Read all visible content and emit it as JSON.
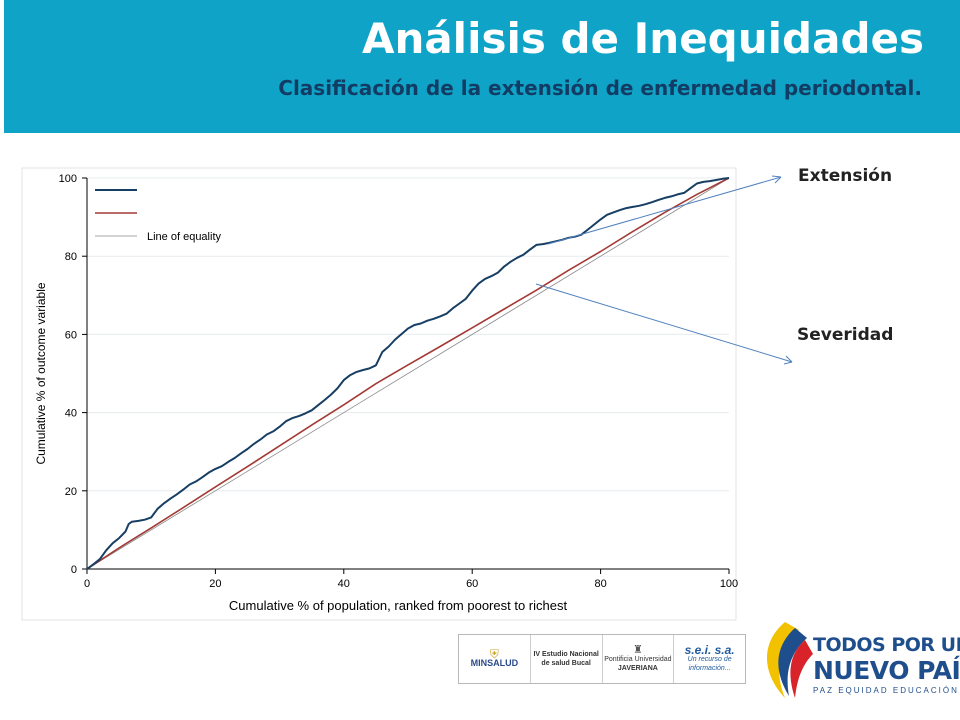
{
  "header": {
    "title": "Análisis de Inequidades",
    "subtitle": "Clasificación de la extensión de enfermedad periodontal."
  },
  "callouts": {
    "extension": "Extensión",
    "severity": "Severidad"
  },
  "colors": {
    "header_bg": "#0fa3c7",
    "series_extension": "#173e63",
    "series_severity": "#a33a35",
    "equality_line": "#8a8a8a"
  },
  "chart_data": {
    "type": "line",
    "xlabel": "Cumulative % of population, ranked from poorest to richest",
    "ylabel": "Cumulative % of outcome variable",
    "xlim": [
      0,
      100
    ],
    "ylim": [
      0,
      100
    ],
    "xticks": [
      0,
      20,
      40,
      60,
      80,
      100
    ],
    "yticks": [
      0,
      20,
      40,
      60,
      80,
      100
    ],
    "grid": true,
    "legend_position": "top-left",
    "legend_entries": [
      "",
      "",
      "Line of equality"
    ],
    "series": [
      {
        "x": [
          0,
          1,
          2,
          3,
          4,
          5,
          6,
          6.5,
          7,
          8,
          9,
          10,
          11,
          12,
          13,
          14,
          15,
          16,
          17,
          18,
          19,
          20,
          21,
          22,
          23,
          24,
          25,
          26,
          27,
          28,
          29,
          30,
          31,
          32,
          33,
          34,
          35,
          36,
          37,
          38,
          39,
          40,
          41,
          42,
          43,
          44,
          45,
          46,
          47,
          48,
          49,
          50,
          51,
          52,
          53,
          54,
          55,
          56,
          57,
          58,
          59,
          60,
          61,
          62,
          63,
          64,
          65,
          66,
          67,
          68,
          69,
          70,
          71,
          72,
          73,
          74,
          75,
          76,
          77,
          78,
          79,
          80,
          81,
          82,
          83,
          84,
          85,
          86,
          87,
          88,
          89,
          90,
          91,
          92,
          93,
          94,
          95,
          96,
          97,
          98,
          99,
          100
        ],
        "y": [
          0,
          1.2,
          2.5,
          4.8,
          6.6,
          7.9,
          9.6,
          11.5,
          12.1,
          12.3,
          12.6,
          13.2,
          15.4,
          16.8,
          18.0,
          19.1,
          20.3,
          21.6,
          22.4,
          23.5,
          24.7,
          25.6,
          26.3,
          27.4,
          28.4,
          29.6,
          30.7,
          32.0,
          33.1,
          34.4,
          35.2,
          36.4,
          37.8,
          38.6,
          39.1,
          39.8,
          40.6,
          41.9,
          43.2,
          44.6,
          46.2,
          48.3,
          49.6,
          50.4,
          50.9,
          51.3,
          52.1,
          55.5,
          56.9,
          58.7,
          60.1,
          61.5,
          62.4,
          62.8,
          63.5,
          64.0,
          64.6,
          65.3,
          66.7,
          67.9,
          69.1,
          71.2,
          73.0,
          74.2,
          74.9,
          75.8,
          77.4,
          78.6,
          79.6,
          80.4,
          81.7,
          82.9,
          83.1,
          83.4,
          83.8,
          84.2,
          84.7,
          85.0,
          85.5,
          86.8,
          88.1,
          89.4,
          90.6,
          91.2,
          91.8,
          92.3,
          92.6,
          92.9,
          93.3,
          93.8,
          94.4,
          94.9,
          95.3,
          95.8,
          96.2,
          97.4,
          98.6,
          99.0,
          99.2,
          99.5,
          99.8,
          100
        ]
      },
      {
        "x": [
          0,
          5,
          10,
          15,
          20,
          25,
          30,
          35,
          40,
          45,
          50,
          55,
          60,
          65,
          70,
          75,
          80,
          85,
          90,
          95,
          100
        ],
        "y": [
          0,
          5.4,
          10.5,
          15.7,
          21.0,
          26.2,
          31.5,
          36.8,
          42.0,
          47.4,
          52.2,
          56.9,
          61.7,
          66.5,
          71.3,
          76.4,
          81.2,
          86.3,
          91.2,
          95.8,
          100
        ]
      },
      {
        "name": "Line of equality",
        "x": [
          0,
          100
        ],
        "y": [
          0,
          100
        ]
      }
    ]
  },
  "logos": {
    "minsalud": "MINSALUD",
    "study_line1": "IV Estudio Nacional",
    "study_line2": "de salud Bucal",
    "javeriana_line1": "Pontificia Universidad",
    "javeriana_line2": "JAVERIANA",
    "sei": "s.e.i. s.a.",
    "sei_tagline": "Un recurso de información..."
  },
  "brand": {
    "line1": "TODOS POR UN",
    "line2": "NUEVO PAÍS",
    "line3": "PAZ  EQUIDAD  EDUCACIÓN"
  }
}
